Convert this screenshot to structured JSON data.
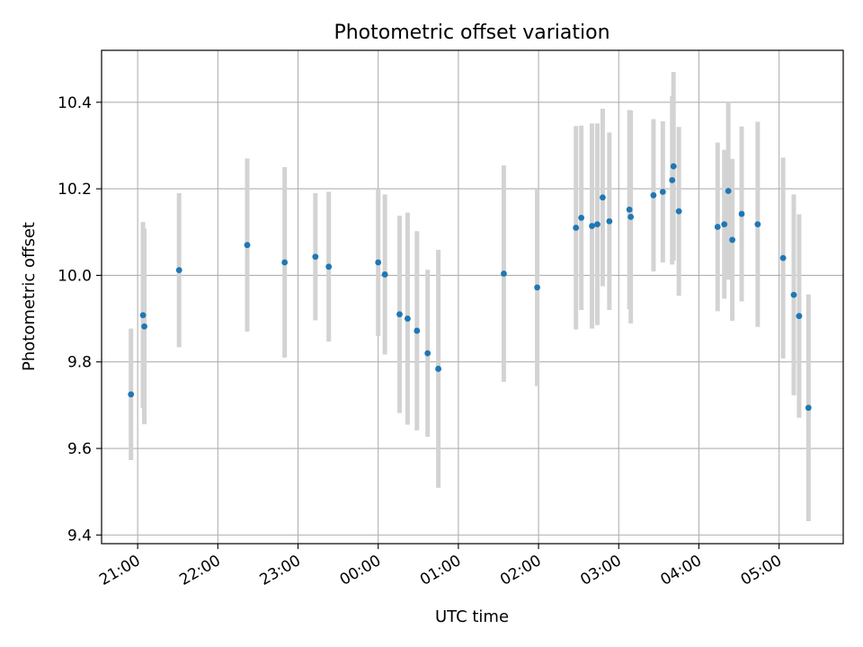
{
  "chart_data": {
    "type": "scatter",
    "title": "Photometric offset variation",
    "xlabel": "UTC time",
    "ylabel": "Photometric offset",
    "grid": true,
    "ylim": [
      9.38,
      10.52
    ],
    "xlim": [
      "20:33",
      "05:48"
    ],
    "yticks": [
      "9.4",
      "9.6",
      "9.8",
      "10.0",
      "10.2",
      "10.4"
    ],
    "xticks": [
      "21:00",
      "22:00",
      "23:00",
      "00:00",
      "01:00",
      "02:00",
      "03:00",
      "04:00",
      "05:00"
    ],
    "colors": {
      "point": "#1f77b4",
      "errorbar": "#d3d3d3",
      "grid": "#b0b0b0"
    },
    "points": [
      {
        "t": "20:55",
        "y": 9.725,
        "e": 0.152
      },
      {
        "t": "21:04",
        "y": 9.908,
        "e": 0.215
      },
      {
        "t": "21:05",
        "y": 9.882,
        "e": 0.226
      },
      {
        "t": "21:31",
        "y": 10.012,
        "e": 0.178
      },
      {
        "t": "22:22",
        "y": 10.07,
        "e": 0.2
      },
      {
        "t": "22:50",
        "y": 10.03,
        "e": 0.22
      },
      {
        "t": "23:13",
        "y": 10.043,
        "e": 0.147
      },
      {
        "t": "23:23",
        "y": 10.02,
        "e": 0.173
      },
      {
        "t": "00:00",
        "y": 10.03,
        "e": 0.17
      },
      {
        "t": "00:05",
        "y": 10.002,
        "e": 0.185
      },
      {
        "t": "00:16",
        "y": 9.91,
        "e": 0.228
      },
      {
        "t": "00:22",
        "y": 9.9,
        "e": 0.245
      },
      {
        "t": "00:29",
        "y": 9.872,
        "e": 0.23
      },
      {
        "t": "00:37",
        "y": 9.82,
        "e": 0.193
      },
      {
        "t": "00:45",
        "y": 9.784,
        "e": 0.275
      },
      {
        "t": "01:34",
        "y": 10.004,
        "e": 0.25
      },
      {
        "t": "01:59",
        "y": 9.972,
        "e": 0.228
      },
      {
        "t": "02:28",
        "y": 10.11,
        "e": 0.235
      },
      {
        "t": "02:32",
        "y": 10.133,
        "e": 0.213
      },
      {
        "t": "02:40",
        "y": 10.114,
        "e": 0.237
      },
      {
        "t": "02:44",
        "y": 10.118,
        "e": 0.233
      },
      {
        "t": "02:48",
        "y": 10.18,
        "e": 0.205
      },
      {
        "t": "02:53",
        "y": 10.125,
        "e": 0.205
      },
      {
        "t": "03:08",
        "y": 10.152,
        "e": 0.23
      },
      {
        "t": "03:09",
        "y": 10.135,
        "e": 0.246
      },
      {
        "t": "03:26",
        "y": 10.185,
        "e": 0.176
      },
      {
        "t": "03:33",
        "y": 10.193,
        "e": 0.163
      },
      {
        "t": "03:40",
        "y": 10.22,
        "e": 0.195
      },
      {
        "t": "03:41",
        "y": 10.252,
        "e": 0.218
      },
      {
        "t": "03:45",
        "y": 10.148,
        "e": 0.195
      },
      {
        "t": "04:14",
        "y": 10.112,
        "e": 0.195
      },
      {
        "t": "04:19",
        "y": 10.118,
        "e": 0.172
      },
      {
        "t": "04:22",
        "y": 10.195,
        "e": 0.205
      },
      {
        "t": "04:25",
        "y": 10.082,
        "e": 0.187
      },
      {
        "t": "04:32",
        "y": 10.142,
        "e": 0.202
      },
      {
        "t": "04:44",
        "y": 10.118,
        "e": 0.237
      },
      {
        "t": "05:03",
        "y": 10.04,
        "e": 0.232
      },
      {
        "t": "05:11",
        "y": 9.955,
        "e": 0.232
      },
      {
        "t": "05:15",
        "y": 9.906,
        "e": 0.235
      },
      {
        "t": "05:22",
        "y": 9.694,
        "e": 0.262
      }
    ]
  }
}
